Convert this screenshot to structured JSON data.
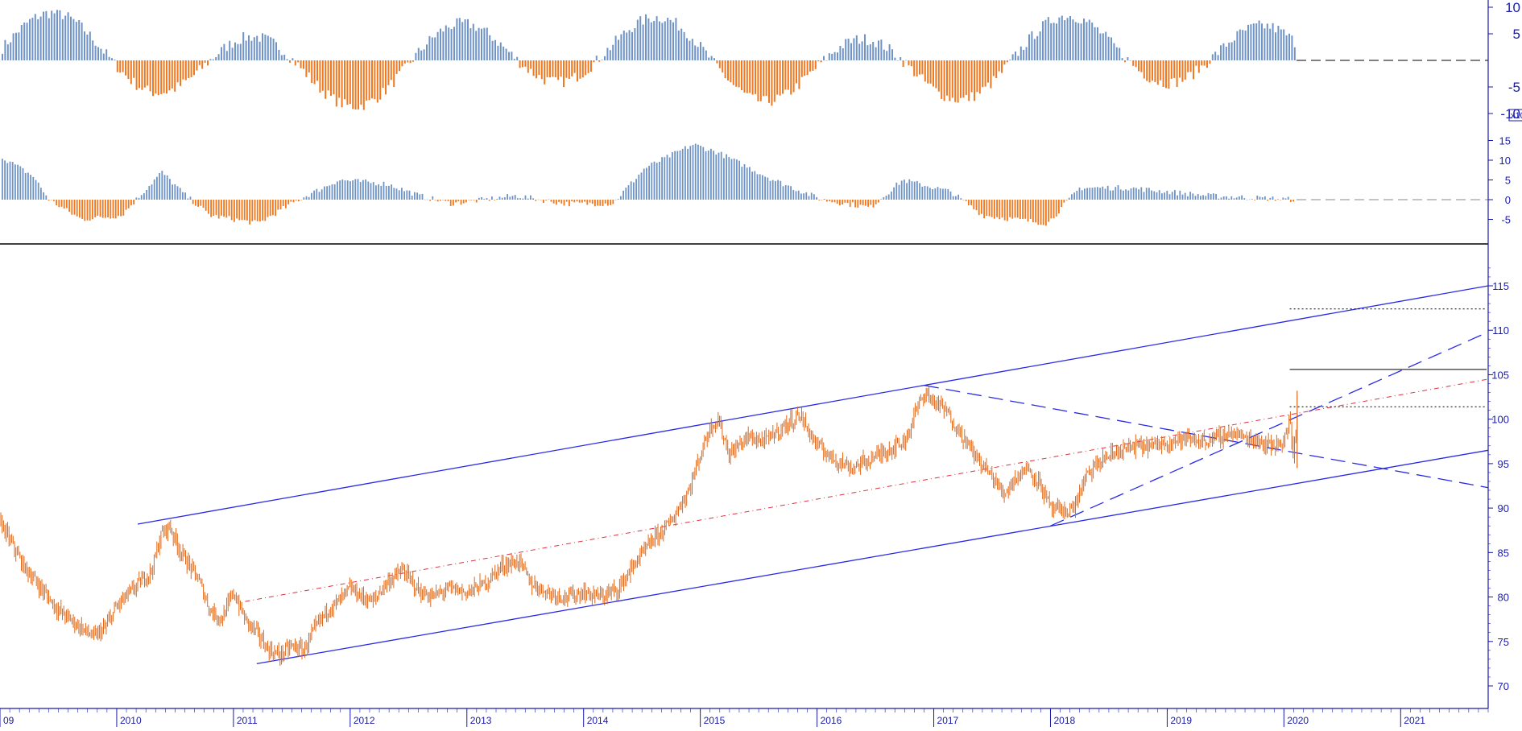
{
  "colors": {
    "positive": "#6f93c6",
    "negative": "#f07820",
    "price": "#e06818",
    "trend": "#2a2ae6",
    "midline": "#e03040",
    "axis": "#1a1aa8",
    "divider": "#000000"
  },
  "chart_data": [
    {
      "type": "bar",
      "panel": "oscillator-1",
      "ylim": [
        -10,
        10
      ],
      "yticks": [
        "10",
        "5",
        "-5",
        "-10"
      ],
      "zero_line": "dashed",
      "series": [
        {
          "color_up": "#6f93c6",
          "color_down": "#f07820",
          "values_note_only_shape": "weekly oscillator bars alternating between about -9 and +9"
        }
      ]
    },
    {
      "type": "bar",
      "panel": "oscillator-2",
      "scale_label": "x10",
      "ylim": [
        -10,
        18
      ],
      "yticks": [
        "15",
        "10",
        "5",
        "0",
        "-5"
      ],
      "zero_line": "dashed",
      "series": [
        {
          "color_up": "#6f93c6",
          "color_down": "#f07820"
        }
      ]
    },
    {
      "type": "line",
      "panel": "price",
      "ylim": [
        68,
        118
      ],
      "yticks": [
        "115",
        "110",
        "105",
        "100",
        "95",
        "90",
        "85",
        "80",
        "75",
        "70"
      ],
      "x_labels": [
        "09",
        "2010",
        "2011",
        "2012",
        "2013",
        "2014",
        "2015",
        "2016",
        "2017",
        "2018",
        "2019",
        "2020",
        "2021"
      ],
      "x_range": [
        2009.0,
        2021.75
      ],
      "series": [
        {
          "color": "#e06818",
          "x": [
            2009.0,
            2009.1,
            2009.2,
            2009.35,
            2009.5,
            2009.65,
            2009.8,
            2009.9,
            2010.0,
            2010.15,
            2010.3,
            2010.38,
            2010.45,
            2010.55,
            2010.7,
            2010.8,
            2010.9,
            2011.0,
            2011.1,
            2011.2,
            2011.3,
            2011.4,
            2011.5,
            2011.6,
            2011.7,
            2011.8,
            2011.9,
            2012.0,
            2012.1,
            2012.2,
            2012.3,
            2012.45,
            2012.6,
            2012.7,
            2012.85,
            2013.0,
            2013.15,
            2013.3,
            2013.45,
            2013.55,
            2013.7,
            2013.85,
            2014.0,
            2014.15,
            2014.3,
            2014.45,
            2014.6,
            2014.75,
            2014.9,
            2015.0,
            2015.08,
            2015.15,
            2015.25,
            2015.4,
            2015.55,
            2015.7,
            2015.85,
            2016.0,
            2016.15,
            2016.3,
            2016.45,
            2016.6,
            2016.75,
            2016.85,
            2016.92,
            2017.0,
            2017.1,
            2017.2,
            2017.35,
            2017.5,
            2017.6,
            2017.7,
            2017.8,
            2017.9,
            2018.0,
            2018.1,
            2018.2,
            2018.3,
            2018.45,
            2018.6,
            2018.75,
            2018.9,
            2019.0,
            2019.15,
            2019.3,
            2019.45,
            2019.55,
            2019.65,
            2019.8,
            2019.9,
            2020.0,
            2020.05,
            2020.08,
            2020.12
          ],
          "values": [
            88.5,
            86,
            83.5,
            81,
            78.5,
            77,
            75.5,
            76.5,
            79,
            81,
            83,
            87,
            88,
            85,
            82,
            78.5,
            77.5,
            80.5,
            77.5,
            76,
            74,
            73.5,
            74.5,
            74,
            76.5,
            78.5,
            79.5,
            81,
            80,
            79.5,
            81.5,
            83,
            80.5,
            80,
            81,
            80.5,
            81.5,
            83.5,
            84,
            81.5,
            80.5,
            80,
            80.5,
            80,
            81,
            84,
            86.5,
            88.5,
            92,
            96,
            99,
            100,
            96,
            98,
            97.5,
            99,
            100.5,
            97,
            95.5,
            94.5,
            95.5,
            96.5,
            97.5,
            101,
            103,
            102,
            101,
            99,
            96,
            93.5,
            91.5,
            93.5,
            94.5,
            93,
            90,
            89.5,
            90,
            93.5,
            95.5,
            96.5,
            97,
            97,
            97.5,
            97.8,
            97.5,
            98,
            98.5,
            98,
            97.5,
            97,
            97.5,
            100,
            95.5,
            101.5
          ]
        }
      ],
      "levels": [
        {
          "value": 112.4,
          "style": "dotted"
        },
        {
          "value": 105.6,
          "style": "solid"
        },
        {
          "value": 101.4,
          "style": "dotted"
        }
      ]
    }
  ]
}
